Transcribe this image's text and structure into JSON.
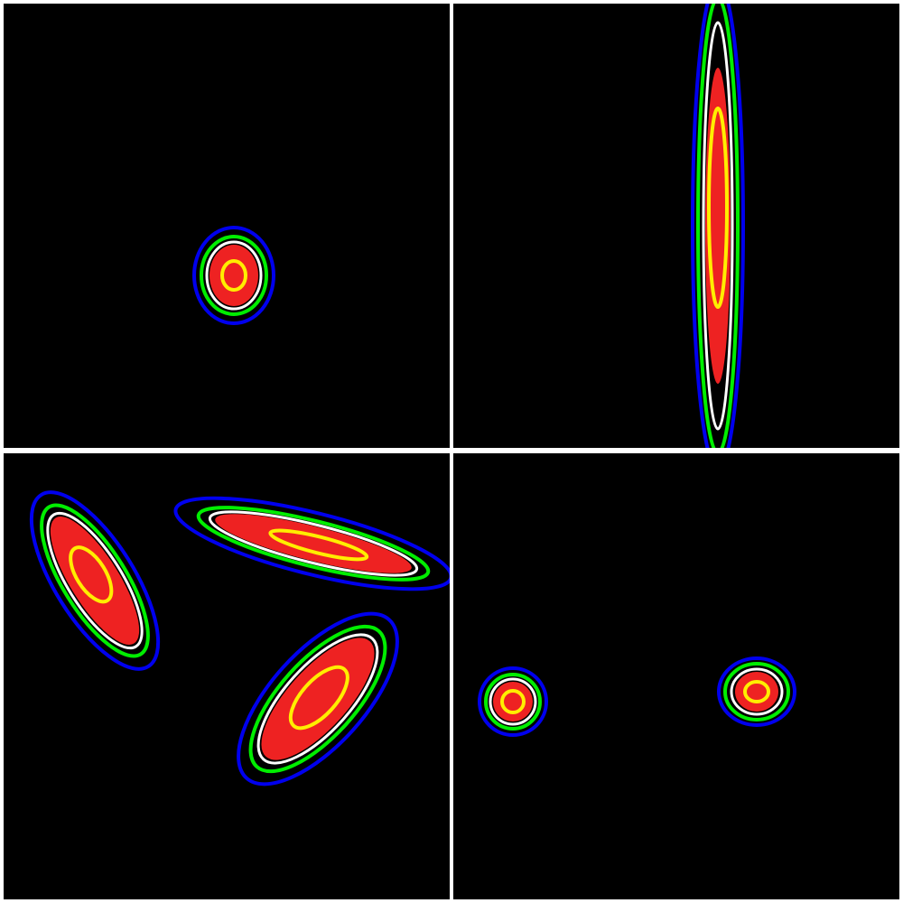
{
  "colors": {
    "background": "#000000",
    "divider": "#ffffff",
    "fill": "#ee2222",
    "contour_inner": "#ffee00",
    "contour_white": "#ffffff",
    "contour_green": "#00ee00",
    "contour_outer": "#0000ee"
  },
  "panels": [
    {
      "id": "top-left",
      "blob_count": 1
    },
    {
      "id": "top-right",
      "blob_count": 1
    },
    {
      "id": "bottom-left",
      "blob_count": 3
    },
    {
      "id": "bottom-right",
      "blob_count": 2
    }
  ]
}
